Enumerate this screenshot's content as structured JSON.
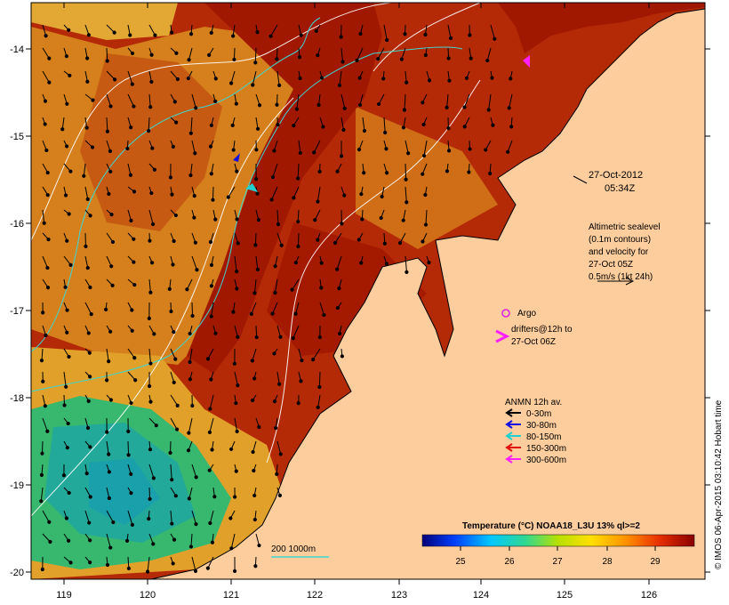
{
  "map": {
    "x_ticks": [
      "119",
      "120",
      "121",
      "122",
      "123",
      "124",
      "125",
      "126"
    ],
    "y_ticks": [
      "-14",
      "-15",
      "-16",
      "-17",
      "-18",
      "-19",
      "-20"
    ],
    "date_line1": "27-Oct-2012",
    "date_line2": "05:34Z",
    "altimetry_lines": [
      "Altimetric sealevel",
      "(0.1m contours)",
      "and velocity for",
      "27-Oct 05Z",
      "0.5m/s (1kt 24h)"
    ],
    "argo_label": "Argo",
    "drifters_lines": [
      "drifters@12h to",
      "27-Oct 06Z"
    ],
    "anmn_title": "ANMN 12h av.",
    "anmn_items": [
      {
        "label": "0-30m",
        "color": "#000000"
      },
      {
        "label": "30-80m",
        "color": "#1010e0"
      },
      {
        "label": "80-150m",
        "color": "#20d0d0"
      },
      {
        "label": "150-300m",
        "color": "#e01010"
      },
      {
        "label": "300-600m",
        "color": "#ff20ff"
      }
    ],
    "depth_label": "200  1000m",
    "colorbar_title": "Temperature (°C) NOAA18_L3U 13% ql>=2",
    "colorbar_ticks": [
      "25",
      "26",
      "27",
      "28",
      "29"
    ],
    "credit": "© IMOS 06-Apr-2015 03:10:42 Hobart time",
    "colors": {
      "land": "#fdcd9e",
      "warm": "#a81a00",
      "mid": "#d9821a",
      "cool": "#2fb86a"
    }
  }
}
